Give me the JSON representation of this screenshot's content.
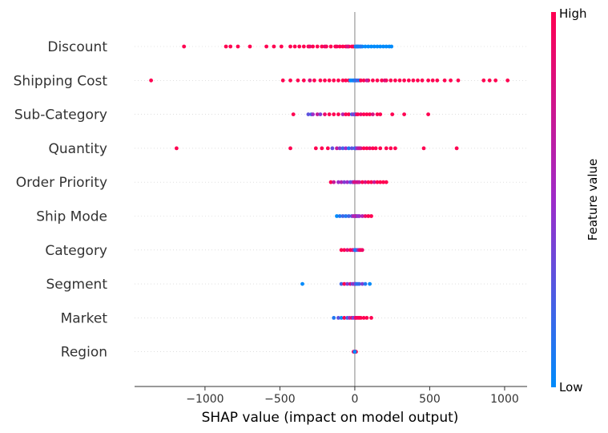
{
  "chart_data": {
    "type": "scatter",
    "subtype": "shap-beeswarm",
    "xlabel": "SHAP value (impact on model output)",
    "xlim": [
      -1470,
      1150
    ],
    "xticks": [
      -1000,
      -500,
      0,
      500,
      1000
    ],
    "xtick_labels": [
      "−1000",
      "−500",
      "0",
      "500",
      "1000"
    ],
    "grid": "dotted horizontal per feature",
    "colorbar": {
      "label": "Feature value",
      "high_label": "High",
      "low_label": "Low",
      "low_color": "#008bfb",
      "high_color": "#ff0051"
    },
    "colors": {
      "low": "#008bfb",
      "mid": "#9e2bc9",
      "high": "#ff0051",
      "zero_line": "#999999"
    },
    "features": [
      {
        "name": "Discount",
        "points": [
          [
            -1140,
            1
          ],
          [
            -860,
            1
          ],
          [
            -830,
            1
          ],
          [
            -780,
            1
          ],
          [
            -700,
            1
          ],
          [
            -590,
            1
          ],
          [
            -540,
            1
          ],
          [
            -490,
            1
          ],
          [
            -430,
            1
          ],
          [
            -400,
            1
          ],
          [
            -370,
            1
          ],
          [
            -340,
            1
          ],
          [
            -310,
            1
          ],
          [
            -280,
            1
          ],
          [
            -250,
            1
          ],
          [
            -220,
            1
          ],
          [
            -190,
            1
          ],
          [
            -160,
            1
          ],
          [
            -130,
            1
          ],
          [
            -100,
            1
          ],
          [
            -80,
            1
          ],
          [
            -60,
            1
          ],
          [
            -40,
            1
          ],
          [
            -20,
            1
          ],
          [
            -10,
            1
          ],
          [
            -300,
            0.9
          ],
          [
            -200,
            0.9
          ],
          [
            -120,
            0.95
          ],
          [
            -50,
            0.8
          ],
          [
            5,
            0
          ],
          [
            15,
            0
          ],
          [
            25,
            0
          ],
          [
            35,
            0
          ],
          [
            50,
            0
          ],
          [
            70,
            0
          ],
          [
            90,
            0
          ],
          [
            110,
            0
          ],
          [
            130,
            0
          ],
          [
            150,
            0
          ],
          [
            170,
            0
          ],
          [
            190,
            0
          ],
          [
            210,
            0
          ],
          [
            230,
            0
          ],
          [
            245,
            0
          ],
          [
            10,
            0.1
          ],
          [
            20,
            0.05
          ],
          [
            40,
            0.1
          ]
        ]
      },
      {
        "name": "Shipping Cost",
        "points": [
          [
            -1360,
            1
          ],
          [
            -480,
            1
          ],
          [
            -430,
            1
          ],
          [
            -380,
            1
          ],
          [
            -340,
            1
          ],
          [
            -300,
            1
          ],
          [
            -270,
            1
          ],
          [
            -230,
            1
          ],
          [
            -200,
            1
          ],
          [
            -170,
            1
          ],
          [
            -140,
            1
          ],
          [
            -110,
            1
          ],
          [
            -80,
            1
          ],
          [
            -60,
            1
          ],
          [
            -40,
            1
          ],
          [
            -30,
            0
          ],
          [
            -20,
            0
          ],
          [
            -10,
            0
          ],
          [
            -5,
            0.1
          ],
          [
            5,
            0.2
          ],
          [
            10,
            0.1
          ],
          [
            20,
            0.3
          ],
          [
            30,
            0.05
          ],
          [
            40,
            1
          ],
          [
            60,
            1
          ],
          [
            90,
            1
          ],
          [
            120,
            1
          ],
          [
            150,
            1
          ],
          [
            180,
            1
          ],
          [
            210,
            1
          ],
          [
            240,
            1
          ],
          [
            270,
            1
          ],
          [
            300,
            1
          ],
          [
            330,
            1
          ],
          [
            360,
            1
          ],
          [
            390,
            1
          ],
          [
            420,
            1
          ],
          [
            450,
            1
          ],
          [
            490,
            1
          ],
          [
            520,
            1
          ],
          [
            550,
            1
          ],
          [
            600,
            1
          ],
          [
            640,
            1
          ],
          [
            690,
            1
          ],
          [
            860,
            1
          ],
          [
            900,
            1
          ],
          [
            940,
            1
          ],
          [
            1020,
            1
          ],
          [
            -300,
            0.8
          ],
          [
            200,
            0.85
          ],
          [
            80,
            0.7
          ]
        ]
      },
      {
        "name": "Sub-Category",
        "points": [
          [
            -410,
            1
          ],
          [
            -310,
            0.3
          ],
          [
            -290,
            0.2
          ],
          [
            -250,
            0.7
          ],
          [
            -230,
            0.4
          ],
          [
            -200,
            0.9
          ],
          [
            -170,
            1
          ],
          [
            -140,
            1
          ],
          [
            -110,
            1
          ],
          [
            -80,
            0.6
          ],
          [
            -60,
            1
          ],
          [
            -40,
            1
          ],
          [
            -20,
            0.2
          ],
          [
            -10,
            0.5
          ],
          [
            0,
            0.3
          ],
          [
            5,
            0.1
          ],
          [
            10,
            0.8
          ],
          [
            20,
            1
          ],
          [
            40,
            0.9
          ],
          [
            60,
            1
          ],
          [
            80,
            1
          ],
          [
            100,
            1
          ],
          [
            120,
            0.8
          ],
          [
            150,
            1
          ],
          [
            170,
            1
          ],
          [
            250,
            1
          ],
          [
            330,
            1
          ],
          [
            490,
            1
          ],
          [
            -280,
            0.5
          ]
        ]
      },
      {
        "name": "Quantity",
        "points": [
          [
            -1190,
            1
          ],
          [
            -430,
            1
          ],
          [
            -220,
            1
          ],
          [
            -180,
            1
          ],
          [
            -150,
            0.3
          ],
          [
            -120,
            0.7
          ],
          [
            -100,
            0.4
          ],
          [
            -80,
            0.2
          ],
          [
            -60,
            0.5
          ],
          [
            -40,
            0.1
          ],
          [
            -20,
            0.3
          ],
          [
            0,
            0.2
          ],
          [
            5,
            0.1
          ],
          [
            10,
            0.4
          ],
          [
            20,
            0.6
          ],
          [
            40,
            0.8
          ],
          [
            60,
            1
          ],
          [
            80,
            1
          ],
          [
            100,
            0.9
          ],
          [
            120,
            1
          ],
          [
            140,
            1
          ],
          [
            170,
            1
          ],
          [
            210,
            1
          ],
          [
            240,
            1
          ],
          [
            270,
            1
          ],
          [
            460,
            1
          ],
          [
            680,
            1
          ],
          [
            -260,
            1
          ],
          [
            30,
            0.7
          ]
        ]
      },
      {
        "name": "Order Priority",
        "points": [
          [
            -160,
            1
          ],
          [
            -140,
            0.7
          ],
          [
            -110,
            0.5
          ],
          [
            -90,
            0.6
          ],
          [
            -70,
            0.4
          ],
          [
            -50,
            0.5
          ],
          [
            -30,
            0.3
          ],
          [
            -15,
            0.4
          ],
          [
            0,
            0.5
          ],
          [
            10,
            0.6
          ],
          [
            20,
            0.8
          ],
          [
            30,
            0.7
          ],
          [
            50,
            1
          ],
          [
            70,
            0.8
          ],
          [
            90,
            1
          ],
          [
            110,
            1
          ],
          [
            130,
            0.7
          ],
          [
            150,
            1
          ],
          [
            170,
            1
          ],
          [
            190,
            1
          ],
          [
            210,
            1
          ],
          [
            -5,
            0.8
          ]
        ]
      },
      {
        "name": "Ship Mode",
        "points": [
          [
            -120,
            0
          ],
          [
            -100,
            0.1
          ],
          [
            -80,
            0.2
          ],
          [
            -60,
            0.1
          ],
          [
            -40,
            0.2
          ],
          [
            -20,
            0.3
          ],
          [
            0,
            0.5
          ],
          [
            5,
            0.4
          ],
          [
            10,
            0.7
          ],
          [
            20,
            0.4
          ],
          [
            30,
            0.5
          ],
          [
            50,
            0.6
          ],
          [
            70,
            0.9
          ],
          [
            90,
            1
          ],
          [
            110,
            1
          ],
          [
            -10,
            0.6
          ]
        ]
      },
      {
        "name": "Category",
        "points": [
          [
            -90,
            1
          ],
          [
            -70,
            1
          ],
          [
            -50,
            0.8
          ],
          [
            -30,
            1
          ],
          [
            -15,
            0.9
          ],
          [
            -5,
            0.6
          ],
          [
            0,
            0.3
          ],
          [
            5,
            0
          ],
          [
            10,
            0.1
          ],
          [
            20,
            0.4
          ],
          [
            30,
            0.8
          ],
          [
            40,
            1
          ],
          [
            50,
            0.9
          ]
        ]
      },
      {
        "name": "Segment",
        "points": [
          [
            -350,
            0
          ],
          [
            -90,
            0.2
          ],
          [
            -70,
            1
          ],
          [
            -50,
            0.4
          ],
          [
            -30,
            0.8
          ],
          [
            -15,
            0.3
          ],
          [
            -5,
            0.6
          ],
          [
            0,
            0.5
          ],
          [
            5,
            0.3
          ],
          [
            10,
            0.2
          ],
          [
            20,
            0.1
          ],
          [
            30,
            0.2
          ],
          [
            50,
            0.4
          ],
          [
            70,
            0.1
          ],
          [
            100,
            0
          ]
        ]
      },
      {
        "name": "Market",
        "points": [
          [
            -140,
            0.1
          ],
          [
            -110,
            0.3
          ],
          [
            -90,
            0
          ],
          [
            -70,
            1
          ],
          [
            -50,
            0.2
          ],
          [
            -35,
            0.6
          ],
          [
            -20,
            0.9
          ],
          [
            -10,
            0.3
          ],
          [
            0,
            0.5
          ],
          [
            5,
            0.8
          ],
          [
            10,
            1
          ],
          [
            20,
            0.9
          ],
          [
            30,
            1
          ],
          [
            40,
            1
          ],
          [
            60,
            1
          ],
          [
            80,
            1
          ],
          [
            110,
            1
          ]
        ]
      },
      {
        "name": "Region",
        "points": [
          [
            -8,
            1
          ],
          [
            -4,
            0.7
          ],
          [
            0,
            0.9
          ],
          [
            4,
            0.4
          ],
          [
            8,
            1
          ],
          [
            0,
            0
          ]
        ]
      }
    ]
  }
}
